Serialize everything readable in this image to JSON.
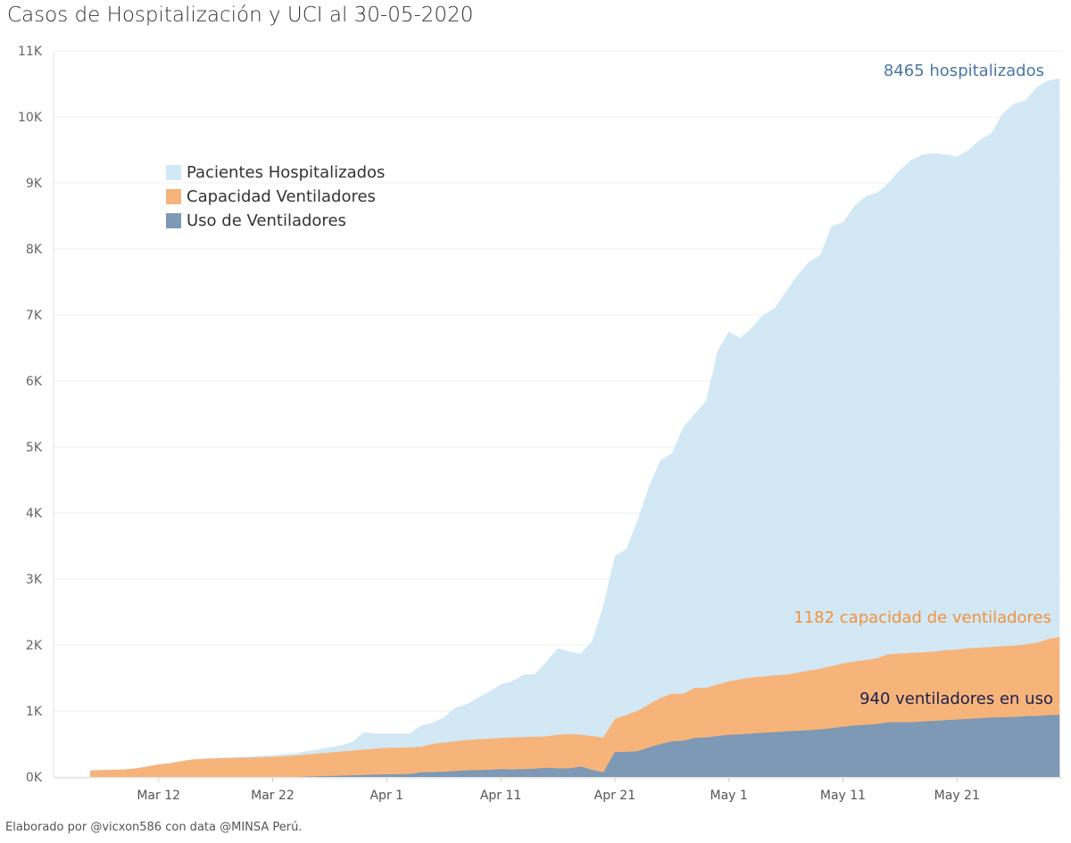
{
  "chart_data": {
    "type": "area",
    "stacked": true,
    "title": "Casos de Hospitalización y UCI al 30-05-2020",
    "xlabel": "",
    "ylabel": "",
    "start_date": "2020-03-06",
    "end_date": "2020-05-30",
    "ylim": [
      0,
      11000
    ],
    "grid": true,
    "y_ticks": [
      "0K",
      "1K",
      "2K",
      "3K",
      "4K",
      "5K",
      "6K",
      "7K",
      "8K",
      "9K",
      "10K",
      "11K"
    ],
    "x_ticks": [
      {
        "label": "Mar 12",
        "day_index": 6
      },
      {
        "label": "Mar 22",
        "day_index": 16
      },
      {
        "label": "Apr 1",
        "day_index": 26
      },
      {
        "label": "Apr 11",
        "day_index": 36
      },
      {
        "label": "Apr 21",
        "day_index": 46
      },
      {
        "label": "May 1",
        "day_index": 56
      },
      {
        "label": "May 11",
        "day_index": 66
      },
      {
        "label": "May 21",
        "day_index": 76
      }
    ],
    "legend_placement": "top-left",
    "note": "values_cumulative are stacked top levels per day (uso, uso+capacidad, uso+capacidad+hospitalizados)",
    "series": [
      {
        "name": "Pacientes Hospitalizados",
        "color": "#d3e8f5",
        "values_cumulative": [
          100,
          105,
          110,
          115,
          130,
          160,
          190,
          210,
          240,
          265,
          280,
          290,
          300,
          305,
          310,
          320,
          330,
          345,
          360,
          390,
          420,
          450,
          480,
          530,
          680,
          660,
          660,
          660,
          660,
          780,
          820,
          900,
          1050,
          1100,
          1200,
          1300,
          1400,
          1450,
          1550,
          1560,
          1750,
          1950,
          1900,
          1870,
          2050,
          2600,
          3350,
          3450,
          3900,
          4400,
          4800,
          4900,
          5300,
          5500,
          5700,
          6450,
          6750,
          6650,
          6800,
          7000,
          7100,
          7350,
          7600,
          7800,
          7900,
          8350,
          8400,
          8650,
          8800,
          8850,
          9000,
          9200,
          9350,
          9430,
          9450,
          9430,
          9400,
          9500,
          9650,
          9750,
          10050,
          10200,
          10250,
          10450,
          10550,
          10587
        ]
      },
      {
        "name": "Capacidad Ventiladores",
        "color": "#f6b47a",
        "values_cumulative": [
          100,
          105,
          110,
          115,
          130,
          160,
          190,
          210,
          240,
          265,
          275,
          280,
          285,
          290,
          295,
          300,
          305,
          315,
          325,
          340,
          355,
          370,
          385,
          400,
          415,
          430,
          440,
          445,
          450,
          455,
          500,
          520,
          540,
          560,
          570,
          580,
          590,
          600,
          605,
          610,
          615,
          640,
          650,
          640,
          620,
          600,
          880,
          940,
          1000,
          1100,
          1200,
          1260,
          1260,
          1350,
          1350,
          1400,
          1450,
          1480,
          1510,
          1520,
          1540,
          1550,
          1580,
          1610,
          1640,
          1680,
          1720,
          1750,
          1770,
          1800,
          1860,
          1870,
          1880,
          1890,
          1900,
          1920,
          1930,
          1950,
          1960,
          1970,
          1980,
          1990,
          2010,
          2030,
          2090,
          2122
        ]
      },
      {
        "name": "Uso de Ventiladores",
        "color": "#7d99b5",
        "values_cumulative": [
          0,
          0,
          0,
          0,
          0,
          0,
          0,
          0,
          0,
          0,
          0,
          0,
          0,
          0,
          0,
          0,
          0,
          0,
          0,
          5,
          10,
          15,
          20,
          25,
          30,
          35,
          40,
          40,
          45,
          70,
          75,
          80,
          90,
          100,
          105,
          110,
          120,
          115,
          120,
          125,
          140,
          130,
          130,
          160,
          110,
          70,
          380,
          380,
          390,
          450,
          500,
          540,
          550,
          590,
          600,
          620,
          640,
          645,
          660,
          670,
          680,
          690,
          700,
          710,
          720,
          740,
          760,
          780,
          790,
          800,
          830,
          830,
          830,
          840,
          850,
          860,
          870,
          880,
          890,
          900,
          905,
          910,
          920,
          925,
          935,
          940
        ]
      }
    ],
    "annotations": [
      {
        "text": "8465 hospitalizados",
        "color": "#4a76a8"
      },
      {
        "text": "1182 capacidad de ventiladores",
        "color": "#f0923a"
      },
      {
        "text": "940 ventiladores en uso",
        "color": "#1b1f4f"
      }
    ]
  },
  "footer": "Elaborado por @vicxon586 con data @MINSA Perú."
}
